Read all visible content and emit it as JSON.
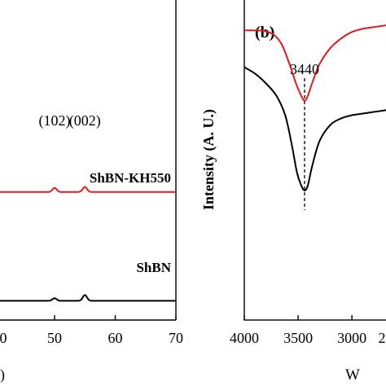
{
  "chart_data": [
    {
      "panel_id": "a",
      "type": "line",
      "title": "",
      "xlabel": "",
      "x_unit_visible": ")",
      "ylabel": "",
      "xlim": [
        41,
        70
      ],
      "ylim": [
        0,
        1
      ],
      "x_ticks": [
        50,
        60,
        70
      ],
      "x_tick_labels": [
        "50",
        "60",
        "70"
      ],
      "x_tick_left_partial": "0",
      "grid": false,
      "series": [
        {
          "name": "ShBN-KH550",
          "color": "#e41a1c",
          "baseline": 0.4,
          "peaks": [
            {
              "x": 50.0,
              "height": 0.013
            },
            {
              "x": 55.0,
              "height": 0.016
            }
          ]
        },
        {
          "name": "ShBN",
          "color": "#000000",
          "baseline": 0.06,
          "peaks": [
            {
              "x": 50.0,
              "height": 0.008
            },
            {
              "x": 55.0,
              "height": 0.018
            }
          ]
        }
      ],
      "annotations": [
        {
          "text": "(102)",
          "x": 50.0
        },
        {
          "text": "(002)",
          "x": 55.0
        }
      ]
    },
    {
      "panel_id": "b",
      "type": "line",
      "panel_label": "(b)",
      "title": "",
      "xlabel": "W",
      "ylabel": "Intensity (A. U.)",
      "xlim": [
        4000,
        2600
      ],
      "ylim": [
        0,
        1
      ],
      "x_ticks": [
        4000,
        3500,
        3000
      ],
      "x_tick_labels": [
        "4000",
        "3500",
        "3000"
      ],
      "x_tick_right_partial": "2",
      "grid": false,
      "series": [
        {
          "name": "red",
          "color": "#e41a1c",
          "x": [
            4000,
            3900,
            3800,
            3720,
            3650,
            3580,
            3520,
            3470,
            3440,
            3410,
            3370,
            3300,
            3200,
            3100,
            3000,
            2900,
            2800,
            2700,
            2600
          ],
          "y": [
            0.905,
            0.905,
            0.902,
            0.89,
            0.86,
            0.8,
            0.74,
            0.7,
            0.685,
            0.7,
            0.74,
            0.8,
            0.85,
            0.88,
            0.9,
            0.91,
            0.915,
            0.92,
            0.925
          ]
        },
        {
          "name": "black",
          "color": "#000000",
          "x": [
            4000,
            3900,
            3800,
            3700,
            3620,
            3560,
            3510,
            3470,
            3440,
            3410,
            3370,
            3300,
            3200,
            3100,
            3000,
            2900,
            2800,
            2700,
            2600
          ],
          "y": [
            0.79,
            0.77,
            0.74,
            0.7,
            0.64,
            0.55,
            0.46,
            0.42,
            0.405,
            0.42,
            0.48,
            0.56,
            0.61,
            0.63,
            0.64,
            0.645,
            0.65,
            0.655,
            0.66
          ]
        }
      ],
      "annotations": [
        {
          "text": "3440",
          "x": 3440
        }
      ],
      "reference_line": {
        "x": 3440,
        "style": "dashed"
      }
    }
  ]
}
